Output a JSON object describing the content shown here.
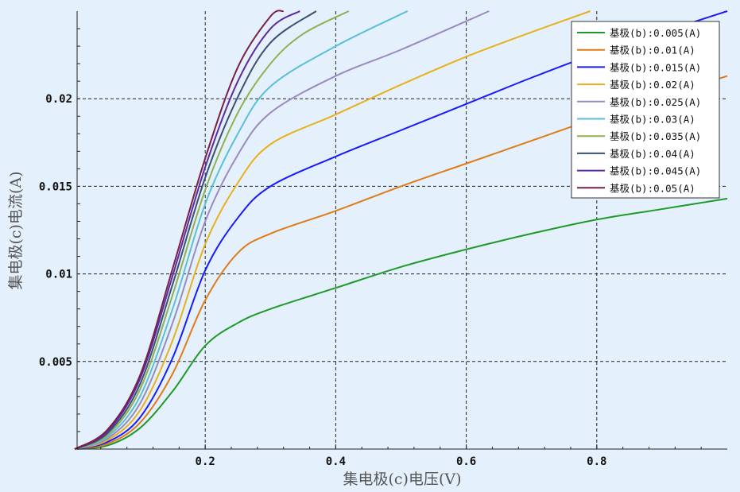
{
  "chart_data": {
    "type": "line",
    "title": "",
    "xlabel": "集电极(c)电压(V)",
    "ylabel": "集电极(c)电流(A)",
    "xlim": [
      0,
      1.0
    ],
    "ylim": [
      0,
      0.025
    ],
    "xticks": [
      "0.2",
      "0.4",
      "0.6",
      "0.8"
    ],
    "yticks": [
      "0.005",
      "0.01",
      "0.015",
      "0.02"
    ],
    "grid": true,
    "legend_position": "top-right",
    "series": [
      {
        "name": "基极(b):0.005(A)",
        "color": "#1f9a2a",
        "x": [
          0,
          0.05,
          0.1,
          0.15,
          0.2,
          0.25,
          0.3,
          0.4,
          0.5,
          0.6,
          0.7,
          0.8,
          0.9,
          1.0
        ],
        "y": [
          0,
          0.0002,
          0.0012,
          0.0033,
          0.0059,
          0.0072,
          0.008,
          0.0092,
          0.0104,
          0.0114,
          0.0123,
          0.0131,
          0.0137,
          0.0143
        ]
      },
      {
        "name": "基极(b):0.01(A)",
        "color": "#e07b1a",
        "x": [
          0,
          0.05,
          0.1,
          0.15,
          0.2,
          0.25,
          0.3,
          0.4,
          0.5,
          0.6,
          0.7,
          0.8,
          0.9,
          1.0
        ],
        "y": [
          0,
          0.0003,
          0.0015,
          0.0043,
          0.0085,
          0.0112,
          0.0123,
          0.0136,
          0.015,
          0.0163,
          0.0176,
          0.0189,
          0.0201,
          0.0213
        ]
      },
      {
        "name": "基极(b):0.015(A)",
        "color": "#1a1aff",
        "x": [
          0,
          0.05,
          0.1,
          0.15,
          0.2,
          0.25,
          0.3,
          0.4,
          0.5,
          0.6,
          0.7,
          0.8,
          0.9,
          1.0
        ],
        "y": [
          0,
          0.0004,
          0.0018,
          0.0052,
          0.0102,
          0.0132,
          0.015,
          0.0167,
          0.0182,
          0.0197,
          0.0212,
          0.0226,
          0.0238,
          0.025
        ]
      },
      {
        "name": "基极(b):0.02(A)",
        "color": "#e8b01a",
        "x": [
          0,
          0.05,
          0.1,
          0.15,
          0.2,
          0.25,
          0.3,
          0.4,
          0.5,
          0.6,
          0.7,
          0.79
        ],
        "y": [
          0,
          0.0005,
          0.0022,
          0.0062,
          0.0117,
          0.0152,
          0.0174,
          0.0191,
          0.0208,
          0.0224,
          0.0238,
          0.025
        ]
      },
      {
        "name": "基极(b):0.025(A)",
        "color": "#9a8ac0",
        "x": [
          0,
          0.05,
          0.1,
          0.15,
          0.2,
          0.25,
          0.3,
          0.4,
          0.5,
          0.635
        ],
        "y": [
          0,
          0.0006,
          0.0026,
          0.0072,
          0.013,
          0.0168,
          0.0192,
          0.0213,
          0.0228,
          0.025
        ]
      },
      {
        "name": "基极(b):0.03(A)",
        "color": "#5bbfd6",
        "x": [
          0,
          0.05,
          0.1,
          0.15,
          0.2,
          0.25,
          0.3,
          0.4,
          0.51
        ],
        "y": [
          0,
          0.0007,
          0.003,
          0.008,
          0.014,
          0.018,
          0.0207,
          0.023,
          0.025
        ]
      },
      {
        "name": "基极(b):0.035(A)",
        "color": "#8fb050",
        "x": [
          0,
          0.05,
          0.1,
          0.15,
          0.2,
          0.25,
          0.3,
          0.35,
          0.42
        ],
        "y": [
          0,
          0.0008,
          0.0034,
          0.0088,
          0.0148,
          0.0192,
          0.022,
          0.0237,
          0.025
        ]
      },
      {
        "name": "基极(b):0.04(A)",
        "color": "#3b5070",
        "x": [
          0,
          0.05,
          0.1,
          0.15,
          0.2,
          0.25,
          0.3,
          0.37
        ],
        "y": [
          0,
          0.0009,
          0.0037,
          0.0094,
          0.0155,
          0.0201,
          0.0232,
          0.025
        ]
      },
      {
        "name": "基极(b):0.045(A)",
        "color": "#5a2ca0",
        "x": [
          0,
          0.05,
          0.1,
          0.15,
          0.2,
          0.25,
          0.3,
          0.345
        ],
        "y": [
          0,
          0.001,
          0.004,
          0.0099,
          0.0161,
          0.021,
          0.024,
          0.025
        ]
      },
      {
        "name": "基极(b):0.05(A)",
        "color": "#7a1f4a",
        "x": [
          0,
          0.05,
          0.1,
          0.15,
          0.2,
          0.25,
          0.3,
          0.32
        ],
        "y": [
          0,
          0.0011,
          0.0042,
          0.0103,
          0.0166,
          0.0218,
          0.0247,
          0.025
        ]
      }
    ]
  }
}
